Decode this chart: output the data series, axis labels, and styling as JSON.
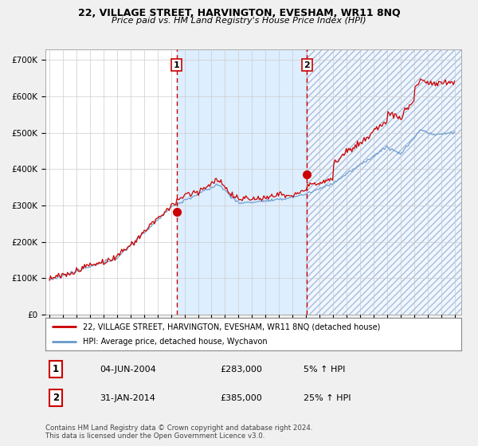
{
  "title": "22, VILLAGE STREET, HARVINGTON, EVESHAM, WR11 8NQ",
  "subtitle": "Price paid vs. HM Land Registry's House Price Index (HPI)",
  "ylim": [
    0,
    730000
  ],
  "yticks": [
    0,
    100000,
    200000,
    300000,
    400000,
    500000,
    600000,
    700000
  ],
  "ytick_labels": [
    "£0",
    "£100K",
    "£200K",
    "£300K",
    "£400K",
    "£500K",
    "£600K",
    "£700K"
  ],
  "sale1_year": 2004.42,
  "sale1_value": 283000,
  "sale2_year": 2014.08,
  "sale2_value": 385000,
  "red_color": "#cc0000",
  "blue_color": "#6699cc",
  "background_color": "#f0f0f0",
  "plot_bg_color": "#ffffff",
  "shade_color": "#ddeeff",
  "legend_line1": "22, VILLAGE STREET, HARVINGTON, EVESHAM, WR11 8NQ (detached house)",
  "legend_line2": "HPI: Average price, detached house, Wychavon",
  "table_row1": [
    "1",
    "04-JUN-2004",
    "£283,000",
    "5% ↑ HPI"
  ],
  "table_row2": [
    "2",
    "31-JAN-2014",
    "£385,000",
    "25% ↑ HPI"
  ],
  "footer": "Contains HM Land Registry data © Crown copyright and database right 2024.\nThis data is licensed under the Open Government Licence v3.0.",
  "title_fontsize": 9,
  "subtitle_fontsize": 8,
  "xstart": 1995,
  "xend": 2025
}
